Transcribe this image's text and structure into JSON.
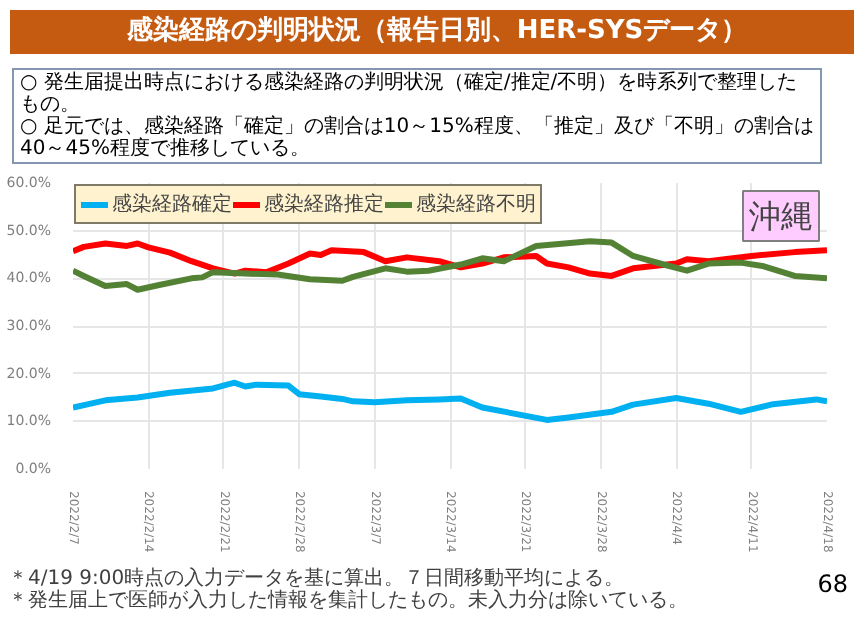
{
  "chart_data": {
    "type": "line",
    "title": "感染経路の判明状況（報告日別、HER-SYSデータ）",
    "annotations": [
      "○ 発生届提出時点における感染経路の判明状況（確定/推定/不明）を時系列で整理したもの。",
      "○ 足元では、感染経路「確定」の割合は10～15%程度、「推定」及び「不明」の割合は40～45%程度で推移している。",
      "沖縄",
      "＊4/19 9:00時点の入力データを基に算出。７日間移動平均による。",
      "＊発生届上で医師が入力した情報を集計したもの。未入力分は除いている。",
      "68"
    ],
    "series": [
      {
        "name": "感染経路確定",
        "color": "#00b0f0",
        "x": [
          "2022-02-07",
          "2022-02-10",
          "2022-02-13",
          "2022-02-16",
          "2022-02-20",
          "2022-02-22",
          "2022-02-23",
          "2022-02-24",
          "2022-02-27",
          "2022-02-28",
          "2022-03-02",
          "2022-03-04",
          "2022-03-05",
          "2022-03-07",
          "2022-03-10",
          "2022-03-13",
          "2022-03-15",
          "2022-03-17",
          "2022-03-23",
          "2022-03-25",
          "2022-03-29",
          "2022-03-31",
          "2022-04-04",
          "2022-04-07",
          "2022-04-10",
          "2022-04-13",
          "2022-04-17",
          "2022-04-18"
        ],
        "values": [
          12.9,
          14.4,
          15,
          16,
          16.9,
          18.1,
          17.3,
          17.7,
          17.5,
          15.7,
          15.2,
          14.7,
          14.2,
          14.0,
          14.4,
          14.6,
          14.8,
          12.9,
          10.3,
          10.8,
          12,
          13.5,
          14.9,
          13.7,
          12,
          13.6,
          14.6,
          14.2
        ]
      },
      {
        "name": "感染経路推定",
        "color": "#ff0000",
        "x": [
          "2022-02-07",
          "2022-02-08",
          "2022-02-10",
          "2022-02-12",
          "2022-02-13",
          "2022-02-14",
          "2022-02-16",
          "2022-02-18",
          "2022-02-20",
          "2022-02-22",
          "2022-02-23",
          "2022-02-25",
          "2022-02-27",
          "2022-03-01",
          "2022-03-02",
          "2022-03-03",
          "2022-03-06",
          "2022-03-08",
          "2022-03-10",
          "2022-03-13",
          "2022-03-15",
          "2022-03-17",
          "2022-03-19",
          "2022-03-22",
          "2022-03-23",
          "2022-03-25",
          "2022-03-27",
          "2022-03-29",
          "2022-03-31",
          "2022-04-04",
          "2022-04-05",
          "2022-04-07",
          "2022-04-11",
          "2022-04-15",
          "2022-04-18"
        ],
        "values": [
          45.7,
          46.6,
          47.3,
          46.8,
          47.3,
          46.5,
          45.4,
          43.6,
          42.1,
          41,
          41.6,
          41.3,
          43.1,
          45.2,
          44.9,
          45.9,
          45.5,
          43.6,
          44.4,
          43.6,
          42.3,
          43.1,
          44.4,
          44.7,
          43.1,
          42.3,
          41,
          40.5,
          42.1,
          43.1,
          44,
          43.6,
          44.7,
          45.5,
          45.9
        ]
      },
      {
        "name": "感染経路不明",
        "color": "#548235",
        "x": [
          "2022-02-07",
          "2022-02-08",
          "2022-02-10",
          "2022-02-12",
          "2022-02-13",
          "2022-02-15",
          "2022-02-18",
          "2022-02-19",
          "2022-02-20",
          "2022-02-23",
          "2022-02-26",
          "2022-03-01",
          "2022-03-04",
          "2022-03-05",
          "2022-03-08",
          "2022-03-10",
          "2022-03-12",
          "2022-03-15",
          "2022-03-17",
          "2022-03-19",
          "2022-03-22",
          "2022-03-27",
          "2022-03-29",
          "2022-03-31",
          "2022-04-03",
          "2022-04-05",
          "2022-04-07",
          "2022-04-10",
          "2022-04-12",
          "2022-04-15",
          "2022-04-18"
        ],
        "values": [
          41.6,
          40.5,
          38.4,
          38.8,
          37.6,
          38.6,
          40,
          40.2,
          41.3,
          41,
          40.8,
          39.8,
          39.5,
          40.3,
          42.1,
          41.4,
          41.6,
          42.9,
          44.2,
          43.6,
          46.8,
          47.8,
          47.5,
          44.7,
          42.8,
          41.6,
          43.1,
          43.3,
          42.6,
          40.5,
          40
        ]
      }
    ],
    "xlim": [
      "2022-02-07",
      "2022-04-18"
    ],
    "xticks": [
      {
        "value": "2022-02-07",
        "label": "2022/2/7"
      },
      {
        "value": "2022-02-14",
        "label": "2022/2/14"
      },
      {
        "value": "2022-02-21",
        "label": "2022/2/21"
      },
      {
        "value": "2022-02-28",
        "label": "2022/2/28"
      },
      {
        "value": "2022-03-07",
        "label": "2022/3/7"
      },
      {
        "value": "2022-03-14",
        "label": "2022/3/14"
      },
      {
        "value": "2022-03-21",
        "label": "2022/3/21"
      },
      {
        "value": "2022-03-28",
        "label": "2022/3/28"
      },
      {
        "value": "2022-04-04",
        "label": "2022/4/4"
      },
      {
        "value": "2022-04-11",
        "label": "2022/4/11"
      },
      {
        "value": "2022-04-18",
        "label": "2022/4/18"
      }
    ],
    "ylim": [
      0,
      60
    ],
    "yticks": [
      {
        "value": 0,
        "label": "0.0%"
      },
      {
        "value": 10,
        "label": "10.0%"
      },
      {
        "value": 20,
        "label": "20.0%"
      },
      {
        "value": 30,
        "label": "30.0%"
      },
      {
        "value": 40,
        "label": "40.0%"
      },
      {
        "value": 50,
        "label": "50.0%"
      },
      {
        "value": 60,
        "label": "60.0%"
      }
    ],
    "grid": true,
    "legend": "top left",
    "marker": "none",
    "line_style": "solid"
  }
}
